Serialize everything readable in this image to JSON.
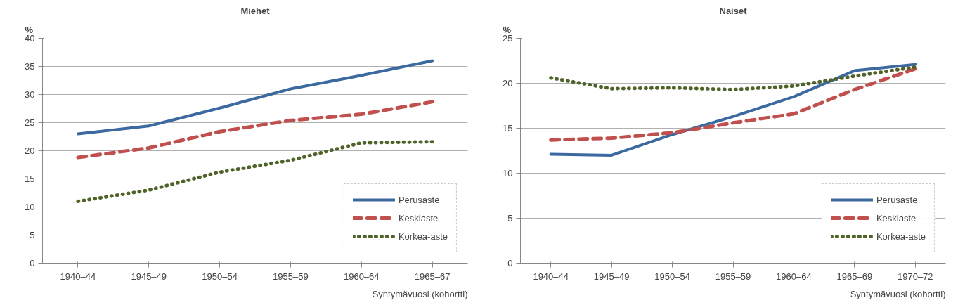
{
  "chart_data": [
    {
      "type": "line",
      "title": "Miehet",
      "ylabel": "%",
      "xlabel": "Syntymävuosi (kohortti)",
      "categories": [
        "1940–44",
        "1945–49",
        "1950–54",
        "1955–59",
        "1960–64",
        "1965–67"
      ],
      "ylim": [
        0,
        40
      ],
      "yticks": [
        0,
        5,
        10,
        15,
        20,
        25,
        30,
        35,
        40
      ],
      "grid": "y",
      "legend": "bottom right",
      "series": [
        {
          "name": "Perusaste",
          "color": "#3c6aa0",
          "line_style": "solid",
          "values": [
            23.0,
            24.4,
            27.6,
            31.0,
            33.4,
            36.0
          ]
        },
        {
          "name": "Keskiaste",
          "color": "#c0504d",
          "line_style": "dashed",
          "values": [
            18.8,
            20.5,
            23.4,
            25.4,
            26.5,
            28.7
          ]
        },
        {
          "name": "Korkea-aste",
          "color": "#4f6228",
          "line_style": "dotted",
          "values": [
            11.0,
            13.0,
            16.2,
            18.3,
            21.4,
            21.6
          ]
        }
      ]
    },
    {
      "type": "line",
      "title": "Naiset",
      "ylabel": "%",
      "xlabel": "Syntymävuosi (kohortti)",
      "categories": [
        "1940–44",
        "1945–49",
        "1950–54",
        "1955–59",
        "1960–64",
        "1965–69",
        "1970–72"
      ],
      "ylim": [
        0,
        25
      ],
      "yticks": [
        0,
        5,
        10,
        15,
        20,
        25
      ],
      "grid": "y",
      "legend": "bottom right",
      "series": [
        {
          "name": "Perusaste",
          "color": "#3c6aa0",
          "line_style": "solid",
          "values": [
            12.1,
            12.0,
            14.3,
            16.3,
            18.5,
            21.4,
            22.1
          ]
        },
        {
          "name": "Keskiaste",
          "color": "#c0504d",
          "line_style": "dashed",
          "values": [
            13.7,
            13.9,
            14.5,
            15.6,
            16.6,
            19.3,
            21.6
          ]
        },
        {
          "name": "Korkea-aste",
          "color": "#4f6228",
          "line_style": "dotted",
          "values": [
            20.6,
            19.4,
            19.5,
            19.3,
            19.7,
            20.8,
            21.8
          ]
        }
      ]
    }
  ]
}
